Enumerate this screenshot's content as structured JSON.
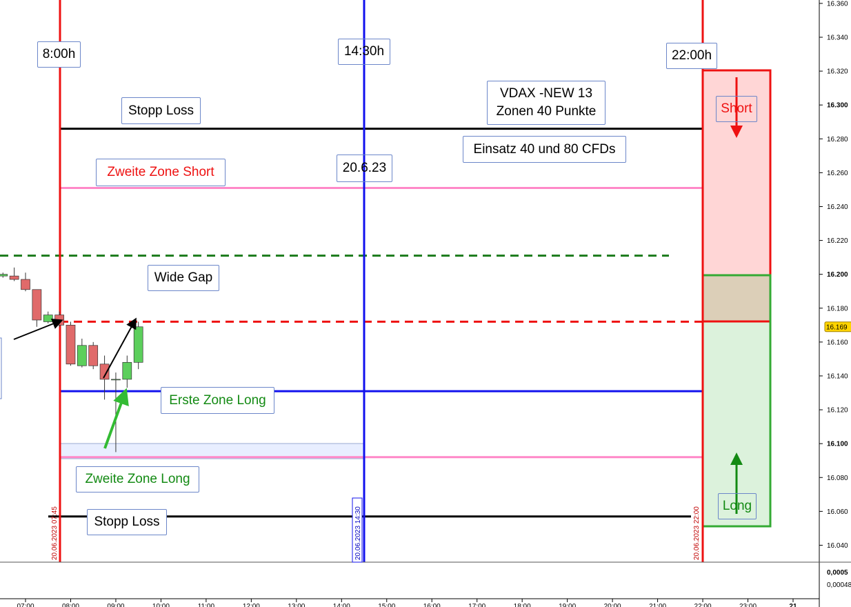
{
  "chart_data": {
    "type": "candlestick",
    "x": [
      "06:30",
      "06:45",
      "07:00",
      "07:15",
      "07:30",
      "07:45",
      "08:00",
      "08:15",
      "08:30",
      "08:45",
      "09:00",
      "09:15",
      "09:30"
    ],
    "open": [
      16199,
      16199,
      16197,
      16191,
      16172,
      16176,
      16170,
      16146,
      16158,
      16147,
      16138,
      16138,
      16148
    ],
    "high": [
      16201,
      16204,
      16201,
      16191,
      16178,
      16178,
      16172,
      16162,
      16160,
      16152,
      16142,
      16152,
      16172
    ],
    "low": [
      16198,
      16196,
      16190,
      16169,
      16171,
      16169,
      16146,
      16145,
      16144,
      16126,
      16095,
      16133,
      16144
    ],
    "close": [
      16200,
      16197,
      16191,
      16173,
      16176,
      16170,
      16147,
      16158,
      16146,
      16138,
      16138,
      16148,
      16169
    ],
    "up_color": "#5ccf5c",
    "down_color": "#e06a6a",
    "ylim": [
      16030,
      16362
    ],
    "yticks": [
      {
        "value": 16040,
        "label": "16.040"
      },
      {
        "value": 16060,
        "label": "16.060"
      },
      {
        "value": 16080,
        "label": "16.080"
      },
      {
        "value": 16100,
        "label": "16.100"
      },
      {
        "value": 16120,
        "label": "16.120"
      },
      {
        "value": 16140,
        "label": "16.140"
      },
      {
        "value": 16160,
        "label": "16.160"
      },
      {
        "value": 16180,
        "label": "16.180"
      },
      {
        "value": 16200,
        "label": "16.200"
      },
      {
        "value": 16220,
        "label": "16.220"
      },
      {
        "value": 16240,
        "label": "16.240"
      },
      {
        "value": 16260,
        "label": "16.260"
      },
      {
        "value": 16280,
        "label": "16.280"
      },
      {
        "value": 16300,
        "label": "16.300"
      },
      {
        "value": 16320,
        "label": "16.320"
      },
      {
        "value": 16340,
        "label": "16.340"
      },
      {
        "value": 16360,
        "label": "16.360"
      }
    ],
    "xticks": [
      "07:00",
      "08:00",
      "09:00",
      "10:00",
      "11:00",
      "12:00",
      "13:00",
      "14:00",
      "15:00",
      "16:00",
      "17:00",
      "18:00",
      "19:00",
      "20:00",
      "21:00",
      "22:00",
      "23:00",
      "21"
    ],
    "last_price": {
      "value": 16169,
      "label": "16.169"
    },
    "levels": [
      {
        "value": 16286,
        "color": "#000000",
        "style": "solid"
      },
      {
        "value": 16251,
        "color": "#ff88c8",
        "style": "solid"
      },
      {
        "value": 16211,
        "color": "#1a7a1a",
        "style": "dashed"
      },
      {
        "value": 16172,
        "color": "#ee1111",
        "style": "dashed"
      },
      {
        "value": 16131,
        "color": "#1111ee",
        "style": "solid"
      },
      {
        "value": 16092,
        "color": "#ff88c8",
        "style": "solid"
      },
      {
        "value": 16057,
        "color": "#000000",
        "style": "solid"
      }
    ],
    "vertical_labels": [
      "20.06.2023 07:45",
      "20.06.2023 14:30",
      "20.06.2023 22:00"
    ],
    "lower_panel_labels": [
      "0,0005",
      "0,00048"
    ]
  },
  "annotations": {
    "t0800": "8:00h",
    "t1430": "14:30h",
    "t2200": "22:00h",
    "stop_top": "Stopp Loss",
    "vdax_1": "VDAX -NEW 13",
    "vdax_2": "Zonen 40 Punkte",
    "einsatz": "Einsatz 40 und 80 CFDs",
    "zone_short": "Zweite Zone Short",
    "date": "20.6.23",
    "wide_gap": "Wide Gap",
    "zone_long_1": "Erste Zone Long",
    "zone_long_2": "Zweite Zone Long",
    "stop_bottom": "Stopp Loss",
    "short": "Short",
    "long": "Long"
  }
}
